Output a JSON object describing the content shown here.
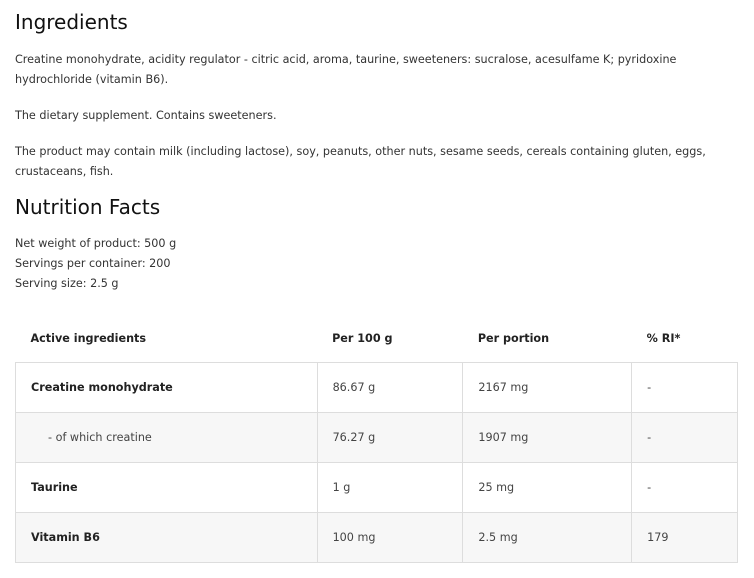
{
  "ingredients": {
    "title": "Ingredients",
    "paragraphs": [
      "Creatine monohydrate, acidity regulator - citric acid, aroma, taurine, sweeteners: sucralose, acesulfame K; pyridoxine hydrochloride (vitamin B6).",
      "The dietary supplement. Contains sweeteners.",
      "The product may contain milk (including lactose), soy, peanuts, other nuts, sesame seeds, cereals containing gluten, eggs, crustaceans, fish."
    ]
  },
  "nutrition": {
    "title": "Nutrition Facts",
    "net_weight": "Net weight of product: 500 g",
    "servings": "Servings per container: 200",
    "serving_size": "Serving size: 2.5 g",
    "table": {
      "headers": [
        "Active ingredients",
        "Per 100 g",
        "Per portion",
        "% RI*"
      ],
      "rows": [
        [
          "Creatine monohydrate",
          "86.67 g",
          "2167 mg",
          "-"
        ],
        [
          "- of which creatine",
          "76.27 g",
          "1907 mg",
          "-"
        ],
        [
          "Taurine",
          "1 g",
          "25 mg",
          "-"
        ],
        [
          "Vitamin B6",
          "100 mg",
          "2.5 mg",
          "179"
        ]
      ]
    }
  }
}
